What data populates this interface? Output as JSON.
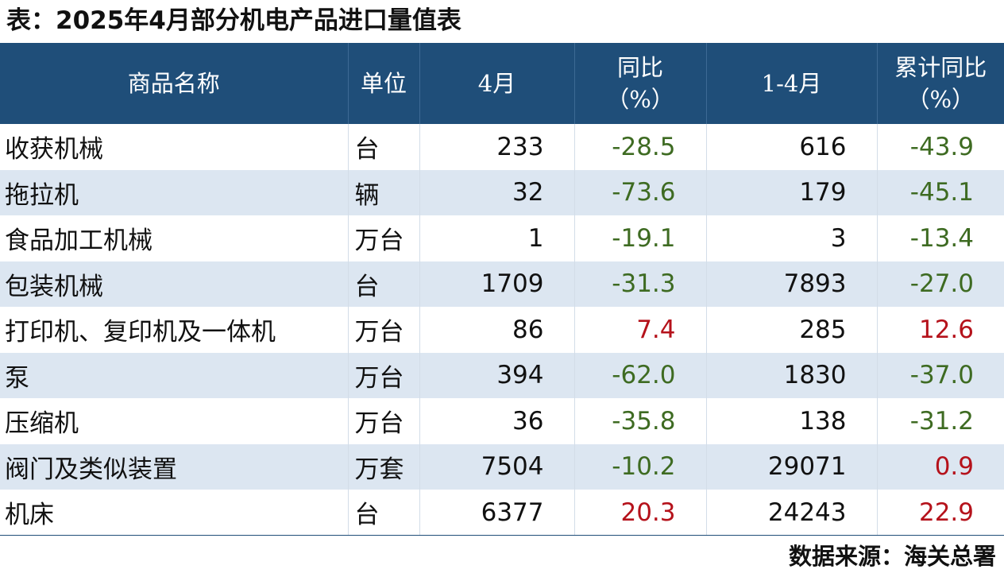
{
  "title": "表：2025年4月部分机电产品进口量值表",
  "headers": {
    "name": "商品名称",
    "unit": "单位",
    "month": "4月",
    "yoy_line1": "同比",
    "yoy_line2": "（%）",
    "ytd": "1-4月",
    "ytd_yoy_line1": "累计同比",
    "ytd_yoy_line2": "（%）"
  },
  "rows": [
    {
      "name": "收获机械",
      "unit": "台",
      "month": "233",
      "yoy": "-28.5",
      "ytd": "616",
      "ytd_yoy": "-43.9"
    },
    {
      "name": "拖拉机",
      "unit": "辆",
      "month": "32",
      "yoy": "-73.6",
      "ytd": "179",
      "ytd_yoy": "-45.1"
    },
    {
      "name": "食品加工机械",
      "unit": "万台",
      "month": "1",
      "yoy": "-19.1",
      "ytd": "3",
      "ytd_yoy": "-13.4"
    },
    {
      "name": "包装机械",
      "unit": "台",
      "month": "1709",
      "yoy": "-31.3",
      "ytd": "7893",
      "ytd_yoy": "-27.0"
    },
    {
      "name": "打印机、复印机及一体机",
      "unit": "万台",
      "month": "86",
      "yoy": "7.4",
      "ytd": "285",
      "ytd_yoy": "12.6"
    },
    {
      "name": "泵",
      "unit": "万台",
      "month": "394",
      "yoy": "-62.0",
      "ytd": "1830",
      "ytd_yoy": "-37.0"
    },
    {
      "name": "压缩机",
      "unit": "万台",
      "month": "36",
      "yoy": "-35.8",
      "ytd": "138",
      "ytd_yoy": "-31.2"
    },
    {
      "name": "阀门及类似装置",
      "unit": "万套",
      "month": "7504",
      "yoy": "-10.2",
      "ytd": "29071",
      "ytd_yoy": "0.9"
    },
    {
      "name": "机床",
      "unit": "台",
      "month": "6377",
      "yoy": "20.3",
      "ytd": "24243",
      "ytd_yoy": "22.9"
    }
  ],
  "source": "数据来源：海关总署",
  "colors": {
    "header_bg": "#1f4e79",
    "stripe_bg": "#dce6f1",
    "negative": "#3e6b22",
    "positive": "#b5121b"
  }
}
